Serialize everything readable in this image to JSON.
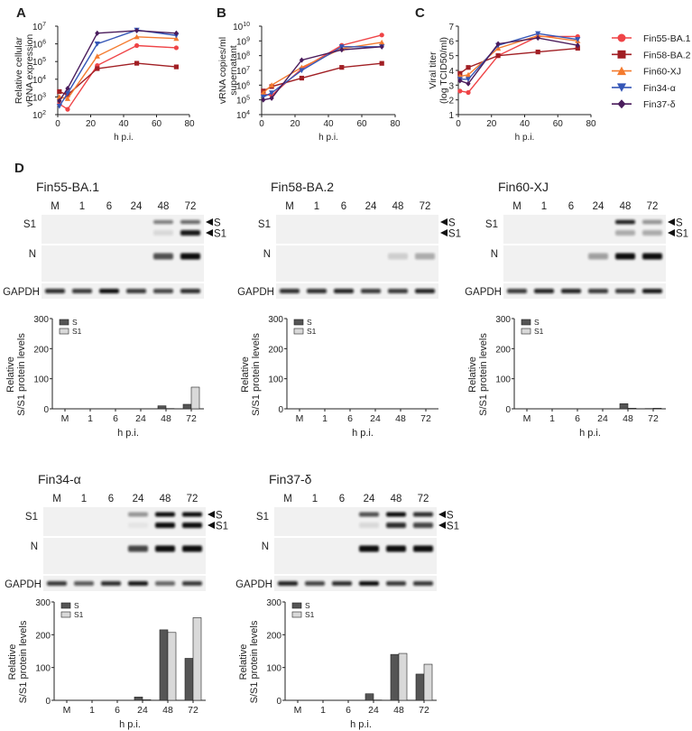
{
  "panel_letters": [
    "A",
    "B",
    "C",
    "D"
  ],
  "series_colors": {
    "Fin55-BA.1": "#ef4447",
    "Fin58-BA.2": "#a11f24",
    "Fin60-XJ": "#f47b2f",
    "Fin34-α": "#3556b6",
    "Fin37-δ": "#4a1c5c"
  },
  "legend": [
    {
      "name": "Fin55-BA.1",
      "marker": "circle"
    },
    {
      "name": "Fin58-BA.2",
      "marker": "square"
    },
    {
      "name": "Fin60-XJ",
      "marker": "triangle-up"
    },
    {
      "name": "Fin34-α",
      "marker": "triangle-down"
    },
    {
      "name": "Fin37-δ",
      "marker": "diamond"
    }
  ],
  "chart_data": [
    {
      "panel": "A",
      "type": "line",
      "xlabel": "h p.i.",
      "ylabel": [
        "Relative cellular",
        "vRNA expression"
      ],
      "xlim": [
        0,
        80
      ],
      "xticks": [
        0,
        20,
        40,
        60,
        80
      ],
      "yscale": "log",
      "ylim": [
        100.0,
        10000000.0
      ],
      "yticks_exp": [
        2,
        3,
        4,
        5,
        6,
        7
      ],
      "x": [
        1,
        6,
        24,
        48,
        72
      ],
      "series": [
        {
          "name": "Fin55-BA.1",
          "values": [
            400.0,
            200.0,
            60000.0,
            800000.0,
            600000.0
          ]
        },
        {
          "name": "Fin58-BA.2",
          "values": [
            2000.0,
            1300.0,
            40000.0,
            80000.0,
            50000.0
          ]
        },
        {
          "name": "Fin60-XJ",
          "values": [
            1000.0,
            800.0,
            200000.0,
            2500000.0,
            2000000.0
          ]
        },
        {
          "name": "Fin34-α",
          "values": [
            300.0,
            1600.0,
            1000000.0,
            6000000.0,
            3000000.0
          ]
        },
        {
          "name": "Fin37-δ",
          "values": [
            600.0,
            3000.0,
            4000000.0,
            5600000.0,
            4000000.0
          ]
        }
      ]
    },
    {
      "panel": "B",
      "type": "line",
      "xlabel": "h p.i.",
      "ylabel": [
        "vRNA copies/ml",
        "supernatant"
      ],
      "xlim": [
        0,
        80
      ],
      "xticks": [
        0,
        20,
        40,
        60,
        80
      ],
      "yscale": "log",
      "ylim": [
        10000.0,
        10000000000.0
      ],
      "yticks_exp": [
        4,
        5,
        6,
        7,
        8,
        9,
        10
      ],
      "x": [
        1,
        6,
        24,
        48,
        72
      ],
      "series": [
        {
          "name": "Fin55-BA.1",
          "values": [
            250000.0,
            200000.0,
            13000000.0,
            500000000.0,
            2500000000.0
          ]
        },
        {
          "name": "Fin58-BA.2",
          "values": [
            400000.0,
            800000.0,
            3000000.0,
            16000000.0,
            30000000.0
          ]
        },
        {
          "name": "Fin60-XJ",
          "values": [
            300000.0,
            1000000.0,
            16000000.0,
            300000000.0,
            800000000.0
          ]
        },
        {
          "name": "Fin34-α",
          "values": [
            160000.0,
            300000.0,
            10000000.0,
            400000000.0,
            400000000.0
          ]
        },
        {
          "name": "Fin37-δ",
          "values": [
            100000.0,
            130000.0,
            50000000.0,
            250000000.0,
            400000000.0
          ]
        }
      ]
    },
    {
      "panel": "C",
      "type": "line",
      "xlabel": "h p.i.",
      "ylabel": [
        "Viral titer",
        "(log TCID50/ml)"
      ],
      "xlim": [
        0,
        80
      ],
      "xticks": [
        0,
        20,
        40,
        60,
        80
      ],
      "yscale": "linear",
      "ylim": [
        1,
        7
      ],
      "yticks": [
        1,
        2,
        3,
        4,
        5,
        6,
        7
      ],
      "x": [
        1,
        6,
        24,
        48,
        72
      ],
      "series": [
        {
          "name": "Fin55-BA.1",
          "values": [
            2.6,
            2.5,
            5.0,
            6.3,
            6.3
          ]
        },
        {
          "name": "Fin58-BA.2",
          "values": [
            3.8,
            4.2,
            5.0,
            5.25,
            5.5
          ]
        },
        {
          "name": "Fin60-XJ",
          "values": [
            3.6,
            3.7,
            5.5,
            6.35,
            6.0
          ]
        },
        {
          "name": "Fin34-α",
          "values": [
            3.4,
            3.4,
            5.7,
            6.5,
            6.1
          ]
        },
        {
          "name": "Fin37-δ",
          "values": [
            3.3,
            3.1,
            5.8,
            6.2,
            5.7
          ]
        }
      ]
    }
  ],
  "blots": [
    {
      "title": "Fin55-BA.1",
      "lanes": [
        "M",
        "1",
        "6",
        "24",
        "48",
        "72"
      ],
      "row_labels": [
        "S1",
        "N",
        "GAPDH"
      ],
      "arrows": [
        "S",
        "S1"
      ],
      "bands": {
        "S": [
          0,
          0,
          0,
          0,
          0.5,
          0.6
        ],
        "S1": [
          0,
          0,
          0,
          0,
          0.1,
          0.95
        ],
        "N": [
          0,
          0,
          0,
          0,
          0.7,
          1
        ],
        "GAPDH": [
          0.85,
          0.8,
          1,
          0.8,
          0.75,
          0.85
        ]
      },
      "bar": {
        "type": "bar",
        "ylabel": [
          "Relative",
          "S/S1 protein levels"
        ],
        "xlabel": "h p.i.",
        "ylim": [
          0,
          300
        ],
        "yticks": [
          0,
          100,
          200,
          300
        ],
        "categories": [
          "M",
          "1",
          "6",
          "24",
          "48",
          "72"
        ],
        "series": [
          {
            "name": "S",
            "color": "#555555",
            "values": [
              0,
              0,
              0,
              0,
              10,
              15
            ]
          },
          {
            "name": "S1",
            "color": "#d9d9d9",
            "values": [
              0,
              0,
              0,
              0,
              1,
              72
            ]
          }
        ]
      }
    },
    {
      "title": "Fin58-BA.2",
      "lanes": [
        "M",
        "1",
        "6",
        "24",
        "48",
        "72"
      ],
      "row_labels": [
        "S1",
        "N",
        "GAPDH"
      ],
      "arrows": [
        "S",
        "S1"
      ],
      "bands": {
        "S": [
          0,
          0,
          0,
          0,
          0,
          0
        ],
        "S1": [
          0,
          0,
          0,
          0,
          0,
          0
        ],
        "N": [
          0,
          0,
          0,
          0,
          0.15,
          0.3
        ],
        "GAPDH": [
          0.85,
          0.85,
          0.9,
          0.8,
          0.8,
          0.9
        ]
      },
      "bar": {
        "type": "bar",
        "ylabel": [
          "Relative",
          "S/S1 protein levels"
        ],
        "xlabel": "h p.i.",
        "ylim": [
          0,
          300
        ],
        "yticks": [
          0,
          100,
          200,
          300
        ],
        "categories": [
          "M",
          "1",
          "6",
          "24",
          "48",
          "72"
        ],
        "series": [
          {
            "name": "S",
            "color": "#555555",
            "values": [
              0,
              0,
              0,
              0,
              0,
              0
            ]
          },
          {
            "name": "S1",
            "color": "#d9d9d9",
            "values": [
              0,
              0,
              0,
              0,
              0,
              0
            ]
          }
        ]
      }
    },
    {
      "title": "Fin60-XJ",
      "lanes": [
        "M",
        "1",
        "6",
        "24",
        "48",
        "72"
      ],
      "row_labels": [
        "S1",
        "N",
        "GAPDH"
      ],
      "arrows": [
        "S",
        "S1"
      ],
      "bands": {
        "S": [
          0,
          0,
          0,
          0,
          0.9,
          0.4
        ],
        "S1": [
          0,
          0,
          0,
          0,
          0.3,
          0.3
        ],
        "N": [
          0,
          0,
          0,
          0.35,
          1,
          1
        ],
        "GAPDH": [
          0.8,
          0.9,
          0.9,
          0.8,
          0.8,
          0.95
        ]
      },
      "bar": {
        "type": "bar",
        "ylabel": [
          "Relative",
          "S/S1 protein levels"
        ],
        "xlabel": "h p.i.",
        "ylim": [
          0,
          300
        ],
        "yticks": [
          0,
          100,
          200,
          300
        ],
        "categories": [
          "M",
          "1",
          "6",
          "24",
          "48",
          "72"
        ],
        "series": [
          {
            "name": "S",
            "color": "#555555",
            "values": [
              0,
              0,
              0,
              0,
              17,
              1
            ]
          },
          {
            "name": "S1",
            "color": "#d9d9d9",
            "values": [
              0,
              0,
              0,
              0,
              2,
              2
            ]
          }
        ]
      }
    },
    {
      "title": "Fin34-α",
      "lanes": [
        "M",
        "1",
        "6",
        "24",
        "48",
        "72"
      ],
      "row_labels": [
        "S1",
        "N",
        "GAPDH"
      ],
      "arrows": [
        "S",
        "S1"
      ],
      "bands": {
        "S": [
          0,
          0,
          0,
          0.4,
          1,
          1
        ],
        "S1": [
          0,
          0,
          0,
          0.05,
          1,
          1
        ],
        "N": [
          0,
          0,
          0,
          0.75,
          1,
          1
        ],
        "GAPDH": [
          0.8,
          0.65,
          0.85,
          0.95,
          0.6,
          0.8
        ]
      },
      "bar": {
        "type": "bar",
        "ylabel": [
          "Relative",
          "S/S1 protein levels"
        ],
        "xlabel": "h p.i.",
        "ylim": [
          0,
          300
        ],
        "yticks": [
          0,
          100,
          200,
          300
        ],
        "categories": [
          "M",
          "1",
          "6",
          "24",
          "48",
          "72"
        ],
        "series": [
          {
            "name": "S",
            "color": "#555555",
            "values": [
              0,
              0,
              0,
              10,
              215,
              128
            ]
          },
          {
            "name": "S1",
            "color": "#d9d9d9",
            "values": [
              0,
              0,
              0,
              2,
              207,
              252
            ]
          }
        ]
      }
    },
    {
      "title": "Fin37-δ",
      "lanes": [
        "M",
        "1",
        "6",
        "24",
        "48",
        "72"
      ],
      "row_labels": [
        "S1",
        "N",
        "GAPDH"
      ],
      "arrows": [
        "S",
        "S1"
      ],
      "bands": {
        "S": [
          0,
          0,
          0,
          0.7,
          1,
          0.85
        ],
        "S1": [
          0,
          0,
          0,
          0.1,
          0.85,
          0.75
        ],
        "N": [
          0,
          0,
          0,
          1,
          1,
          1
        ],
        "GAPDH": [
          0.9,
          0.75,
          0.85,
          1,
          0.8,
          0.8
        ]
      },
      "bar": {
        "type": "bar",
        "ylabel": [
          "Relative",
          "S/S1 protein levels"
        ],
        "xlabel": "h p.i.",
        "ylim": [
          0,
          300
        ],
        "yticks": [
          0,
          100,
          200,
          300
        ],
        "categories": [
          "M",
          "1",
          "6",
          "24",
          "48",
          "72"
        ],
        "series": [
          {
            "name": "S",
            "color": "#555555",
            "values": [
              0,
              0,
              0,
              20,
              140,
              80
            ]
          },
          {
            "name": "S1",
            "color": "#d9d9d9",
            "values": [
              0,
              0,
              0,
              1,
              143,
              110
            ]
          }
        ]
      }
    }
  ]
}
